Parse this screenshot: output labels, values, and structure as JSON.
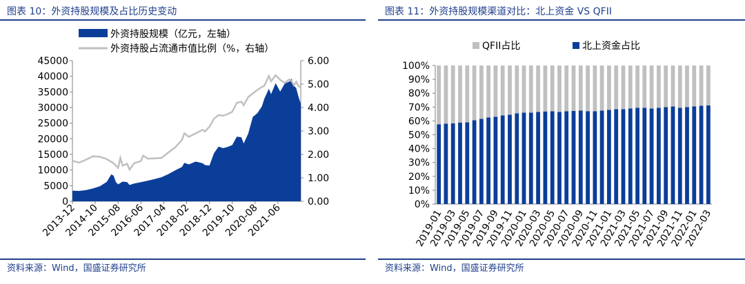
{
  "colors": {
    "blue": "#0b3e99",
    "gray": "#c0c0c0",
    "title": "#1f3f8c",
    "axis": "#808080"
  },
  "panels": {
    "left": {
      "title": "图表 10：外资持股规模及占比历史变动",
      "source": "资料来源：Wind，国盛证券研究所"
    },
    "right": {
      "title": "图表 11：外资持股规模渠道对比：北上资金 VS QFII",
      "source": "资料来源：Wind，国盛证券研究所"
    }
  },
  "chart_data": [
    {
      "type": "area",
      "legend": {
        "placement": "top",
        "series": [
          "外资持股规模（亿元，左轴）",
          "外资持股占流通市值比例（%，右轴）"
        ]
      },
      "x_ticks": [
        "2013-12",
        "2014-10",
        "2015-08",
        "2016-06",
        "2017-04",
        "2018-02",
        "2018-12",
        "2019-10",
        "2020-08",
        "2021-06"
      ],
      "ylim_left": [
        0,
        45000
      ],
      "yticks_left": [
        "0",
        "5000",
        "10000",
        "15000",
        "20000",
        "25000",
        "30000",
        "35000",
        "40000",
        "45000"
      ],
      "ylim_right": [
        0,
        6
      ],
      "yticks_right": [
        "0.00",
        "1.00",
        "2.00",
        "3.00",
        "4.00",
        "5.00",
        "6.00"
      ],
      "series": [
        {
          "name": "外资持股规模（亿元，左轴）",
          "axis": "left",
          "kind": "area",
          "points": [
            [
              "2013-12",
              3400
            ],
            [
              "2014-03",
              3300
            ],
            [
              "2014-06",
              3600
            ],
            [
              "2014-09",
              4100
            ],
            [
              "2014-12",
              4800
            ],
            [
              "2015-03",
              6200
            ],
            [
              "2015-05",
              8600
            ],
            [
              "2015-06",
              8200
            ],
            [
              "2015-07",
              6200
            ],
            [
              "2015-08",
              5400
            ],
            [
              "2015-10",
              6300
            ],
            [
              "2015-12",
              6100
            ],
            [
              "2016-01",
              5200
            ],
            [
              "2016-03",
              5700
            ],
            [
              "2016-06",
              6100
            ],
            [
              "2016-09",
              6600
            ],
            [
              "2016-12",
              7100
            ],
            [
              "2017-03",
              7700
            ],
            [
              "2017-06",
              8700
            ],
            [
              "2017-09",
              9900
            ],
            [
              "2017-12",
              11000
            ],
            [
              "2018-01",
              12300
            ],
            [
              "2018-03",
              11800
            ],
            [
              "2018-06",
              12700
            ],
            [
              "2018-09",
              12200
            ],
            [
              "2018-10",
              11600
            ],
            [
              "2018-12",
              11400
            ],
            [
              "2019-02",
              15400
            ],
            [
              "2019-04",
              17500
            ],
            [
              "2019-06",
              17000
            ],
            [
              "2019-08",
              17400
            ],
            [
              "2019-10",
              18000
            ],
            [
              "2019-12",
              20700
            ],
            [
              "2020-02",
              20500
            ],
            [
              "2020-03",
              18500
            ],
            [
              "2020-05",
              21700
            ],
            [
              "2020-07",
              27000
            ],
            [
              "2020-09",
              28200
            ],
            [
              "2020-11",
              30400
            ],
            [
              "2020-12",
              32700
            ],
            [
              "2021-02",
              36000
            ],
            [
              "2021-03",
              34300
            ],
            [
              "2021-05",
              37800
            ],
            [
              "2021-07",
              35100
            ],
            [
              "2021-09",
              37700
            ],
            [
              "2021-11",
              38300
            ],
            [
              "2021-12",
              39200
            ],
            [
              "2022-01",
              37000
            ],
            [
              "2022-02",
              36200
            ],
            [
              "2022-03",
              33500
            ],
            [
              "2022-04",
              31200
            ]
          ]
        },
        {
          "name": "外资持股占流通市值比例（%，右轴）",
          "axis": "right",
          "kind": "line",
          "points": [
            [
              "2013-12",
              1.73
            ],
            [
              "2014-03",
              1.65
            ],
            [
              "2014-06",
              1.78
            ],
            [
              "2014-09",
              1.92
            ],
            [
              "2014-12",
              1.9
            ],
            [
              "2015-03",
              1.8
            ],
            [
              "2015-06",
              1.62
            ],
            [
              "2015-08",
              1.43
            ],
            [
              "2015-09",
              1.85
            ],
            [
              "2015-10",
              1.52
            ],
            [
              "2015-12",
              1.6
            ],
            [
              "2016-01",
              1.35
            ],
            [
              "2016-03",
              1.62
            ],
            [
              "2016-06",
              1.72
            ],
            [
              "2016-07",
              1.95
            ],
            [
              "2016-09",
              1.82
            ],
            [
              "2016-12",
              1.83
            ],
            [
              "2017-03",
              1.85
            ],
            [
              "2017-06",
              2.08
            ],
            [
              "2017-09",
              2.3
            ],
            [
              "2017-12",
              2.62
            ],
            [
              "2018-01",
              2.9
            ],
            [
              "2018-03",
              2.75
            ],
            [
              "2018-06",
              2.9
            ],
            [
              "2018-09",
              3.05
            ],
            [
              "2018-10",
              2.98
            ],
            [
              "2018-12",
              3.18
            ],
            [
              "2019-02",
              3.52
            ],
            [
              "2019-04",
              3.68
            ],
            [
              "2019-06",
              3.65
            ],
            [
              "2019-08",
              3.72
            ],
            [
              "2019-10",
              3.82
            ],
            [
              "2019-12",
              4.2
            ],
            [
              "2020-02",
              4.25
            ],
            [
              "2020-03",
              4.1
            ],
            [
              "2020-05",
              4.45
            ],
            [
              "2020-07",
              4.6
            ],
            [
              "2020-09",
              4.75
            ],
            [
              "2020-11",
              4.88
            ],
            [
              "2020-12",
              4.92
            ],
            [
              "2021-02",
              5.35
            ],
            [
              "2021-03",
              5.12
            ],
            [
              "2021-05",
              5.38
            ],
            [
              "2021-07",
              5.18
            ],
            [
              "2021-09",
              5.05
            ],
            [
              "2021-11",
              5.2
            ],
            [
              "2021-12",
              5.12
            ],
            [
              "2022-01",
              4.95
            ],
            [
              "2022-02",
              5.1
            ],
            [
              "2022-03",
              4.92
            ],
            [
              "2022-04",
              4.85
            ]
          ]
        }
      ]
    },
    {
      "type": "bar",
      "stacked": true,
      "percent": true,
      "legend": {
        "placement": "top",
        "series": [
          "QFII占比",
          "北上资金占比"
        ]
      },
      "ylim": [
        0,
        100
      ],
      "yticks": [
        "0%",
        "10%",
        "20%",
        "30%",
        "40%",
        "50%",
        "60%",
        "70%",
        "80%",
        "90%",
        "100%"
      ],
      "x_tick_labels": [
        "2019-01",
        "2019-03",
        "2019-05",
        "2019-07",
        "2019-09",
        "2019-11",
        "2020-01",
        "2020-03",
        "2020-05",
        "2020-07",
        "2020-09",
        "2020-11",
        "2021-01",
        "2021-03",
        "2021-05",
        "2021-07",
        "2021-09",
        "2021-11",
        "2022-01",
        "2022-03"
      ],
      "categories": [
        "2019-01",
        "2019-02",
        "2019-03",
        "2019-04",
        "2019-05",
        "2019-06",
        "2019-07",
        "2019-08",
        "2019-09",
        "2019-10",
        "2019-11",
        "2019-12",
        "2020-01",
        "2020-02",
        "2020-03",
        "2020-04",
        "2020-05",
        "2020-06",
        "2020-07",
        "2020-08",
        "2020-09",
        "2020-10",
        "2020-11",
        "2020-12",
        "2021-01",
        "2021-02",
        "2021-03",
        "2021-04",
        "2021-05",
        "2021-06",
        "2021-07",
        "2021-08",
        "2021-09",
        "2021-10",
        "2021-11",
        "2021-12",
        "2022-01",
        "2022-02",
        "2022-03"
      ],
      "series": [
        {
          "name": "北上资金占比",
          "values": [
            57.5,
            58.0,
            58.2,
            58.8,
            59.0,
            60.5,
            61.5,
            62.5,
            63.0,
            64.0,
            64.5,
            65.5,
            66.0,
            66.0,
            66.5,
            66.8,
            67.0,
            66.5,
            67.0,
            67.2,
            67.5,
            67.0,
            67.0,
            67.5,
            68.0,
            68.5,
            68.5,
            69.0,
            69.5,
            69.5,
            69.0,
            69.5,
            70.0,
            70.5,
            69.5,
            70.0,
            70.5,
            71.0,
            71.2
          ]
        },
        {
          "name": "QFII占比",
          "values": [
            42.5,
            42.0,
            41.8,
            41.2,
            41.0,
            39.5,
            38.5,
            37.5,
            37.0,
            36.0,
            35.5,
            34.5,
            34.0,
            34.0,
            33.5,
            33.2,
            33.0,
            33.5,
            33.0,
            32.8,
            32.5,
            33.0,
            33.0,
            32.5,
            32.0,
            31.5,
            31.5,
            31.0,
            30.5,
            30.5,
            31.0,
            30.5,
            30.0,
            29.5,
            30.5,
            30.0,
            29.5,
            29.0,
            28.8
          ]
        }
      ]
    }
  ]
}
